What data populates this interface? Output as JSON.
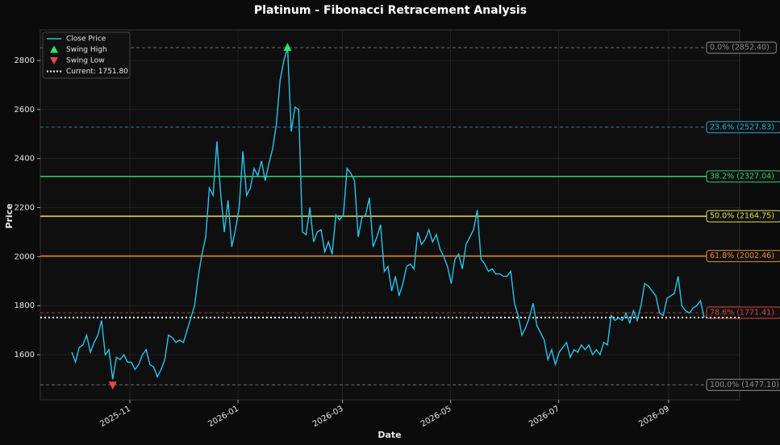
{
  "chart_data": {
    "type": "line",
    "title": "Platinum - Fibonacci Retracement Analysis",
    "x_label": "Date",
    "y_label": "Price",
    "ylim": [
      1416,
      2925
    ],
    "yticks": [
      1600,
      1800,
      2000,
      2200,
      2400,
      2600,
      2800
    ],
    "xticks": [
      "2025-11",
      "2026-01",
      "2026-03",
      "2026-05",
      "2026-07",
      "2026-09"
    ],
    "grid": true,
    "legend_position": "upper left",
    "series": [
      {
        "name": "Close Price",
        "color": "#29c4ec",
        "values": [
          1610,
          1570,
          1630,
          1640,
          1680,
          1610,
          1650,
          1680,
          1740,
          1600,
          1620,
          1500,
          1590,
          1580,
          1600,
          1570,
          1570,
          1540,
          1560,
          1600,
          1620,
          1560,
          1550,
          1510,
          1540,
          1580,
          1680,
          1670,
          1650,
          1660,
          1650,
          1700,
          1750,
          1800,
          1920,
          2010,
          2080,
          2280,
          2250,
          2470,
          2260,
          2100,
          2230,
          2040,
          2110,
          2200,
          2430,
          2250,
          2280,
          2360,
          2330,
          2390,
          2310,
          2380,
          2440,
          2540,
          2720,
          2800,
          2852.4,
          2510,
          2610,
          2600,
          2100,
          2090,
          2200,
          2060,
          2100,
          2110,
          2020,
          2060,
          2010,
          2170,
          2150,
          2170,
          2360,
          2340,
          2310,
          2080,
          2160,
          2170,
          2240,
          2040,
          2080,
          2130,
          1940,
          1960,
          1860,
          1920,
          1840,
          1890,
          1960,
          1970,
          1950,
          2100,
          2050,
          2070,
          2110,
          2060,
          2090,
          2030,
          2000,
          1960,
          1890,
          1990,
          2010,
          1950,
          2050,
          2080,
          2110,
          2190,
          1990,
          1970,
          1940,
          1950,
          1930,
          1930,
          1920,
          1920,
          1940,
          1810,
          1760,
          1680,
          1710,
          1750,
          1810,
          1720,
          1690,
          1660,
          1580,
          1620,
          1560,
          1610,
          1630,
          1650,
          1590,
          1620,
          1610,
          1640,
          1620,
          1640,
          1600,
          1620,
          1600,
          1650,
          1640,
          1760,
          1740,
          1750,
          1740,
          1770,
          1730,
          1780,
          1740,
          1800,
          1890,
          1880,
          1860,
          1840,
          1770,
          1760,
          1830,
          1840,
          1850,
          1920,
          1800,
          1780,
          1770,
          1790,
          1800,
          1820,
          1751.8
        ]
      }
    ],
    "swing_high": {
      "name": "Swing High",
      "color": "#2ee66b"
    },
    "swing_low": {
      "name": "Swing Low",
      "color": "#e8474a"
    },
    "current": {
      "label": "Current: 1751.80",
      "value": 1751.8,
      "color": "#ffffff"
    },
    "fib_levels": [
      {
        "label": "0.0% (2852.40)",
        "value": 2852.4,
        "color": "#8a8a8a",
        "dashed": true
      },
      {
        "label": "23.6% (2527.83)",
        "value": 2527.83,
        "color": "#2aa7d4",
        "dashed": true
      },
      {
        "label": "38.2% (2327.04)",
        "value": 2327.04,
        "color": "#2fcf6c",
        "dashed": false
      },
      {
        "label": "50.0% (2164.75)",
        "value": 2164.75,
        "color": "#e8dc4a",
        "dashed": false
      },
      {
        "label": "61.8% (2002.46)",
        "value": 2002.46,
        "color": "#e88a2e",
        "dashed": false
      },
      {
        "label": "78.6% (1771.41)",
        "value": 1771.41,
        "color": "#d9463f",
        "dashed": true
      },
      {
        "label": "100.0% (1477.10)",
        "value": 1477.1,
        "color": "#8a8a8a",
        "dashed": true
      }
    ]
  }
}
